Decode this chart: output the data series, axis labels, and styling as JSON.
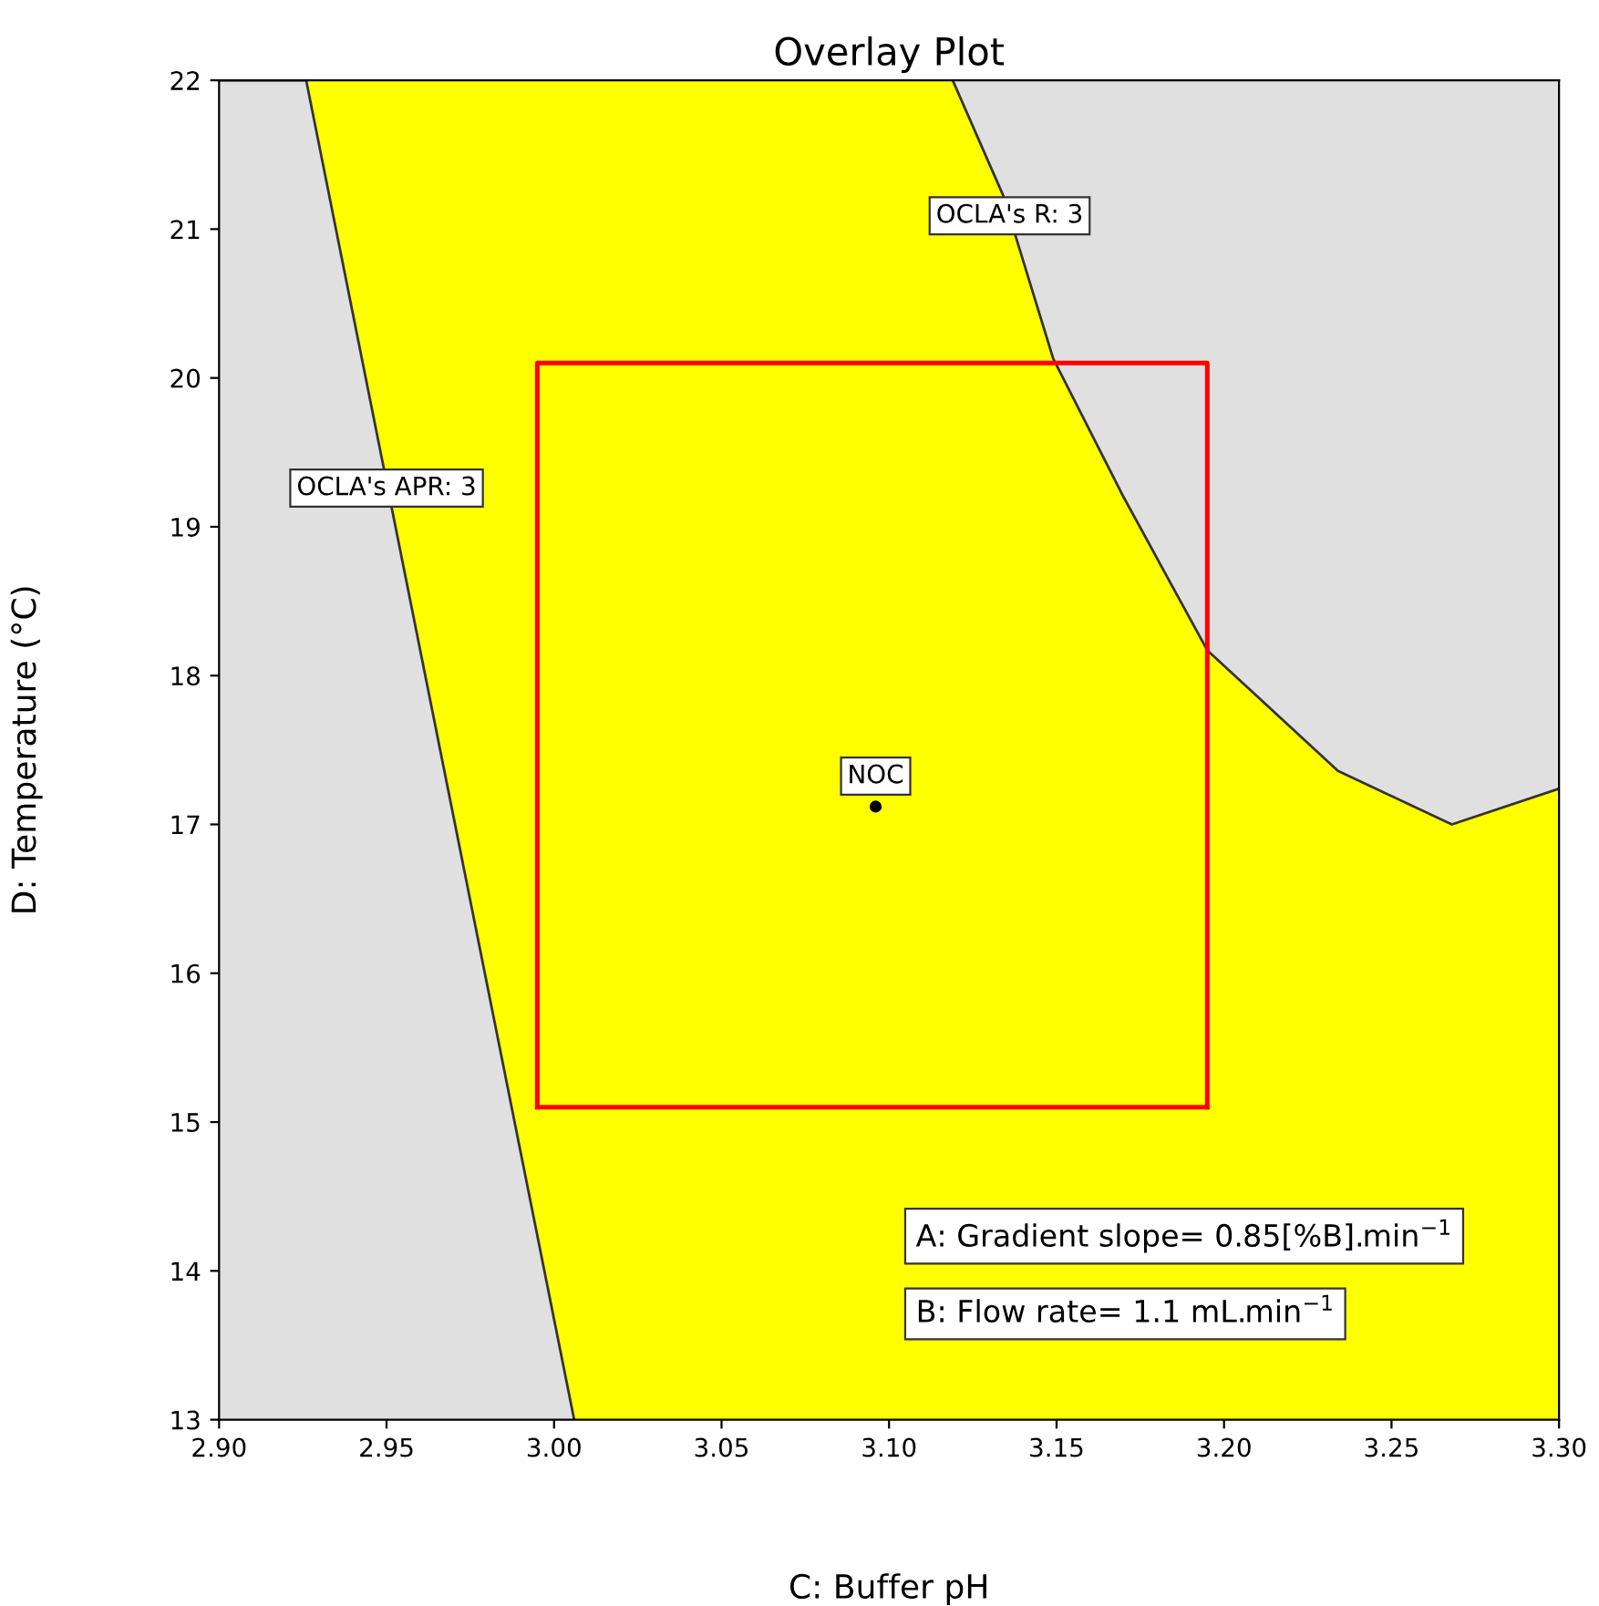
{
  "chart_data": {
    "type": "line",
    "title": "Overlay Plot",
    "xlabel": "C: Buffer pH",
    "ylabel": "D: Temperature (°C)",
    "xlim": [
      2.9,
      3.3
    ],
    "ylim": [
      13,
      22
    ],
    "xticks": [
      {
        "value": 2.9,
        "label": "2.90"
      },
      {
        "value": 2.95,
        "label": "2.95"
      },
      {
        "value": 3.0,
        "label": "3.00"
      },
      {
        "value": 3.05,
        "label": "3.05"
      },
      {
        "value": 3.1,
        "label": "3.10"
      },
      {
        "value": 3.15,
        "label": "3.15"
      },
      {
        "value": 3.2,
        "label": "3.20"
      },
      {
        "value": 3.25,
        "label": "3.25"
      },
      {
        "value": 3.3,
        "label": "3.30"
      }
    ],
    "yticks": [
      13,
      14,
      15,
      16,
      17,
      18,
      19,
      20,
      21,
      22
    ],
    "grid": false,
    "bands": [
      {
        "axis": "x",
        "from": 2.9,
        "to": 3.3,
        "color": "#ffff00"
      }
    ],
    "series": [
      {
        "color": "#333333",
        "x": [
          2.9,
          2.926,
          3.006
        ],
        "values": [
          22,
          22,
          13
        ],
        "lower": [
          13,
          13,
          13
        ],
        "upper": [
          22,
          22,
          13
        ]
      },
      {
        "color": "#333333",
        "x": [
          3.119,
          3.134,
          3.149,
          3.17,
          3.195,
          3.234,
          3.268,
          3.3
        ],
        "values": [
          22,
          21.23,
          20.13,
          19.2,
          18.17,
          17.36,
          17.0,
          17.24
        ],
        "lower": [
          22,
          21.23,
          20.13,
          19.2,
          18.17,
          17.36,
          17.0,
          17.24
        ],
        "upper": [
          22,
          22,
          22,
          22,
          22,
          22,
          22,
          22
        ]
      },
      {
        "color": "#ff0000",
        "x": [
          2.995,
          2.995,
          3.195,
          3.195
        ],
        "values": [
          15.1,
          20.1,
          20.1,
          15.1
        ]
      },
      {
        "color": "#ff0000",
        "x": [
          2.995,
          3.195
        ],
        "values": [
          15.1,
          15.1
        ]
      },
      {
        "type": "scatter",
        "color": "#000000",
        "marker": "circle",
        "x": [
          3.096
        ],
        "values": [
          17.12
        ]
      }
    ],
    "annotations": [
      {
        "text": "OCLA's R: 3",
        "x": 3.136,
        "y": 21.09
      },
      {
        "text": "OCLA's APR: 3",
        "x": 2.95,
        "y": 19.26
      },
      {
        "text": "NOC",
        "x": 3.096,
        "y": 17.12
      },
      "A: Gradient slope= 0.85[%B].min$^{−1}$",
      "B: Flow rate= 1.1 mL.min$^{−1}$"
    ]
  }
}
